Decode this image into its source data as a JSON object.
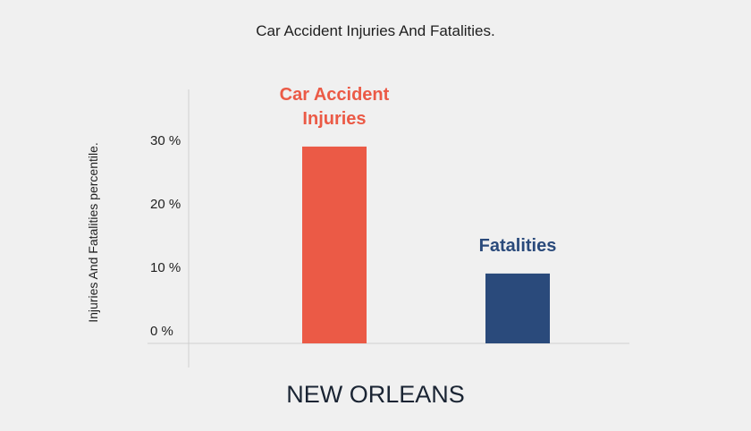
{
  "chart_data": {
    "type": "bar",
    "title": "Car Accident Injuries And Fatalities.",
    "ylabel": "Injuries And Fatalities percentile.",
    "xlabel": "NEW ORLEANS",
    "ylim": [
      0,
      40
    ],
    "yticks": [
      {
        "value": 0,
        "label": "0 %"
      },
      {
        "value": 10,
        "label": "10 %"
      },
      {
        "value": 20,
        "label": "20 %"
      },
      {
        "value": 30,
        "label": "30 %"
      }
    ],
    "bars": [
      {
        "label_lines": [
          "Car Accident",
          "Injuries"
        ],
        "value": 31,
        "color": "#eb5a46"
      },
      {
        "label_lines": [
          "Fatalities"
        ],
        "value": 11,
        "color": "#2a4a7b"
      }
    ],
    "grid": false,
    "legend": "none"
  }
}
